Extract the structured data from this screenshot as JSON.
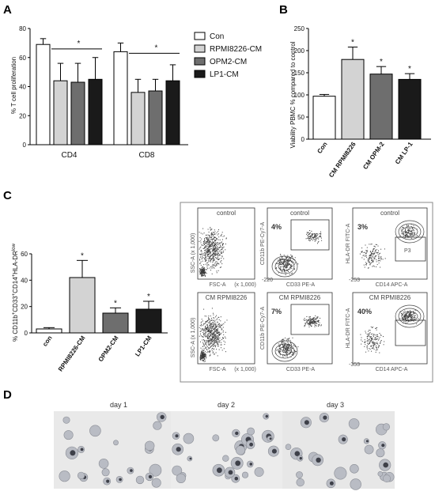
{
  "chart_data": [
    {
      "panel": "A",
      "type": "bar",
      "categories": [
        "CD4",
        "CD8"
      ],
      "ylabel": "% T cell proliferation",
      "ylim": [
        0,
        80
      ],
      "yticks": [
        0,
        20,
        40,
        60,
        80
      ],
      "series": [
        {
          "name": "Con",
          "color": "#ffffff",
          "values": [
            69,
            64
          ],
          "errors": [
            4,
            6
          ]
        },
        {
          "name": "RPMI8226-CM",
          "color": "#d3d3d3",
          "values": [
            44,
            36
          ],
          "errors": [
            12,
            9
          ]
        },
        {
          "name": "OPM2-CM",
          "color": "#6e6e6e",
          "values": [
            43,
            37
          ],
          "errors": [
            13,
            8
          ]
        },
        {
          "name": "LP1-CM",
          "color": "#1a1a1a",
          "values": [
            45,
            44
          ],
          "errors": [
            15,
            11
          ]
        }
      ],
      "significance": [
        "*",
        "*"
      ]
    },
    {
      "panel": "B",
      "type": "bar",
      "categories": [
        "Con",
        "CM RPMI8226",
        "CM OPM-2",
        "CM LP-1"
      ],
      "colors": [
        "#ffffff",
        "#d3d3d3",
        "#6e6e6e",
        "#1a1a1a"
      ],
      "values": [
        97,
        180,
        147,
        135
      ],
      "errors": [
        4,
        28,
        17,
        13
      ],
      "significance": [
        "",
        "*",
        "*",
        "*"
      ],
      "ylabel": "Viability PBMC % compared to control",
      "ylim": [
        0,
        250
      ],
      "yticks": [
        0,
        50,
        100,
        150,
        200,
        250
      ]
    },
    {
      "panel": "C",
      "type": "bar",
      "categories": [
        "con",
        "RPMI8226-CM",
        "OPM2-CM",
        "LP1-CM"
      ],
      "colors": [
        "#ffffff",
        "#d3d3d3",
        "#6e6e6e",
        "#1a1a1a"
      ],
      "values": [
        3,
        42,
        15,
        18
      ],
      "errors": [
        1,
        13,
        4,
        6
      ],
      "significance": [
        "",
        "*",
        "*",
        "*"
      ],
      "ylabel_parts": [
        "% CD11b",
        "+",
        "CD33",
        "+",
        "CD14",
        "+",
        "HLA-DR",
        "low"
      ],
      "ylim": [
        0,
        60
      ],
      "yticks": [
        0,
        20,
        40,
        60
      ]
    }
  ],
  "labels": {
    "panel_a": "A",
    "panel_b": "B",
    "panel_c": "C",
    "panel_d": "D"
  },
  "flow": {
    "row_titles": [
      "control",
      "CM RPMI8226"
    ],
    "fsc_label": "FSC-A",
    "fsc_scale": "(x 1,000)",
    "ssc_label": "SSC-A",
    "ssc_scale": "(x 1,000)",
    "ssc_ticks": "0 50 100 150 200 250",
    "cd11b_label": "CD11b PE-Cy7-A",
    "cd33_label": "CD33 PE-A",
    "cd14_label": "CD14 APC-A",
    "hladr_label": "HLA-DR FITC-A",
    "gate_p2": "P2",
    "gate_p3": "P3",
    "pct_cd11b": [
      "4%",
      "7%"
    ],
    "pct_hladr": [
      "3%",
      "40%"
    ],
    "tick_neg_cd33": "-220",
    "tick_neg_cd14": [
      "-253",
      "-353"
    ]
  },
  "micro": {
    "days": [
      "day 1",
      "day 2",
      "day 3"
    ]
  }
}
